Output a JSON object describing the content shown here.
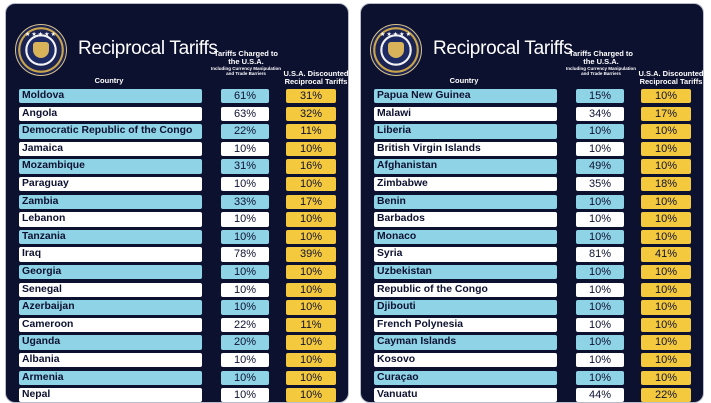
{
  "left": {
    "title": "Reciprocal Tariffs",
    "headers": {
      "country": "Country",
      "charged": "Tariffs Charged to the U.S.A.",
      "charged_sub": "Including Currency Manipulation and Trade Barriers",
      "discounted": "U.S.A. Discounted Reciprocal Tariffs"
    },
    "rows": [
      {
        "country": "Moldova",
        "charged": "61%",
        "discounted": "31%"
      },
      {
        "country": "Angola",
        "charged": "63%",
        "discounted": "32%"
      },
      {
        "country": "Democratic Republic of the Congo",
        "charged": "22%",
        "discounted": "11%"
      },
      {
        "country": "Jamaica",
        "charged": "10%",
        "discounted": "10%"
      },
      {
        "country": "Mozambique",
        "charged": "31%",
        "discounted": "16%"
      },
      {
        "country": "Paraguay",
        "charged": "10%",
        "discounted": "10%"
      },
      {
        "country": "Zambia",
        "charged": "33%",
        "discounted": "17%"
      },
      {
        "country": "Lebanon",
        "charged": "10%",
        "discounted": "10%"
      },
      {
        "country": "Tanzania",
        "charged": "10%",
        "discounted": "10%"
      },
      {
        "country": "Iraq",
        "charged": "78%",
        "discounted": "39%"
      },
      {
        "country": "Georgia",
        "charged": "10%",
        "discounted": "10%"
      },
      {
        "country": "Senegal",
        "charged": "10%",
        "discounted": "10%"
      },
      {
        "country": "Azerbaijan",
        "charged": "10%",
        "discounted": "10%"
      },
      {
        "country": "Cameroon",
        "charged": "22%",
        "discounted": "11%"
      },
      {
        "country": "Uganda",
        "charged": "20%",
        "discounted": "10%"
      },
      {
        "country": "Albania",
        "charged": "10%",
        "discounted": "10%"
      },
      {
        "country": "Armenia",
        "charged": "10%",
        "discounted": "10%"
      },
      {
        "country": "Nepal",
        "charged": "10%",
        "discounted": "10%"
      }
    ]
  },
  "right": {
    "title": "Reciprocal Tariffs",
    "headers": {
      "country": "Country",
      "charged": "Tariffs Charged to the U.S.A.",
      "charged_sub": "Including Currency Manipulation and Trade Barriers",
      "discounted": "U.S.A. Discounted Reciprocal Tariffs"
    },
    "rows": [
      {
        "country": "Papua New Guinea",
        "charged": "15%",
        "discounted": "10%"
      },
      {
        "country": "Malawi",
        "charged": "34%",
        "discounted": "17%"
      },
      {
        "country": "Liberia",
        "charged": "10%",
        "discounted": "10%"
      },
      {
        "country": "British Virgin Islands",
        "charged": "10%",
        "discounted": "10%"
      },
      {
        "country": "Afghanistan",
        "charged": "49%",
        "discounted": "10%"
      },
      {
        "country": "Zimbabwe",
        "charged": "35%",
        "discounted": "18%"
      },
      {
        "country": "Benin",
        "charged": "10%",
        "discounted": "10%"
      },
      {
        "country": "Barbados",
        "charged": "10%",
        "discounted": "10%"
      },
      {
        "country": "Monaco",
        "charged": "10%",
        "discounted": "10%"
      },
      {
        "country": "Syria",
        "charged": "81%",
        "discounted": "41%"
      },
      {
        "country": "Uzbekistan",
        "charged": "10%",
        "discounted": "10%"
      },
      {
        "country": "Republic of the Congo",
        "charged": "10%",
        "discounted": "10%"
      },
      {
        "country": "Djibouti",
        "charged": "10%",
        "discounted": "10%"
      },
      {
        "country": "French Polynesia",
        "charged": "10%",
        "discounted": "10%"
      },
      {
        "country": "Cayman Islands",
        "charged": "10%",
        "discounted": "10%"
      },
      {
        "country": "Kosovo",
        "charged": "10%",
        "discounted": "10%"
      },
      {
        "country": "Curaçao",
        "charged": "10%",
        "discounted": "10%"
      },
      {
        "country": "Vanuatu",
        "charged": "44%",
        "discounted": "22%"
      }
    ]
  },
  "colors": {
    "background": "#0d1130",
    "row_blue": "#8fd3e6",
    "row_white": "#ffffff",
    "discount_yellow": "#f5c93e"
  },
  "icons": {
    "seal": "presidential-seal-icon"
  }
}
